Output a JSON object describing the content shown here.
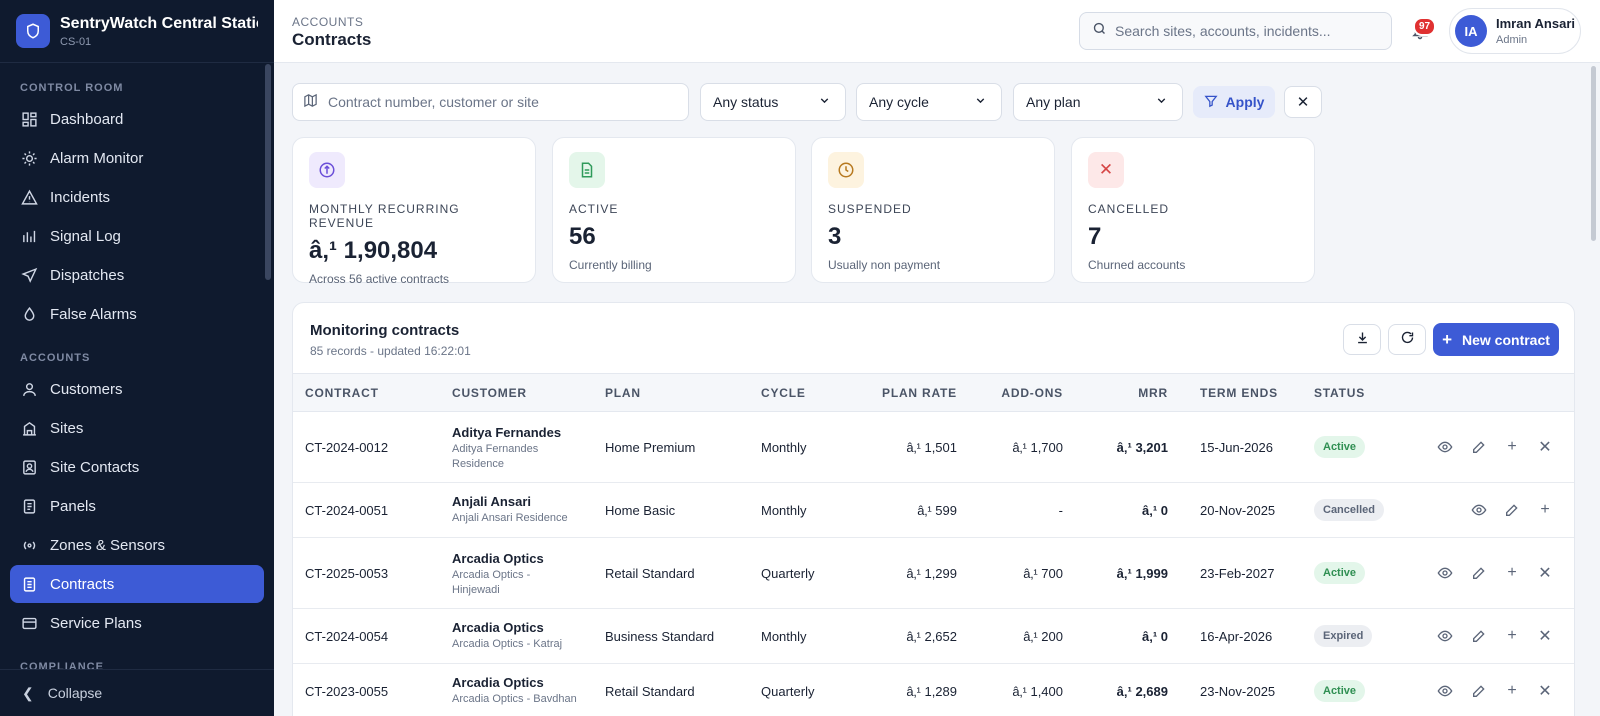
{
  "brand": {
    "title": "SentryWatch Central Station",
    "code": "CS-01"
  },
  "sidebar": {
    "sections": [
      {
        "label": "CONTROL ROOM",
        "items": [
          {
            "label": "Dashboard",
            "icon": "dashboard-icon"
          },
          {
            "label": "Alarm Monitor",
            "icon": "alarm-icon"
          },
          {
            "label": "Incidents",
            "icon": "warning-icon"
          },
          {
            "label": "Signal Log",
            "icon": "bar-chart-icon"
          },
          {
            "label": "Dispatches",
            "icon": "send-icon"
          },
          {
            "label": "False Alarms",
            "icon": "drop-icon"
          }
        ]
      },
      {
        "label": "ACCOUNTS",
        "items": [
          {
            "label": "Customers",
            "icon": "user-icon"
          },
          {
            "label": "Sites",
            "icon": "building-icon"
          },
          {
            "label": "Site Contacts",
            "icon": "contact-icon"
          },
          {
            "label": "Panels",
            "icon": "panel-icon"
          },
          {
            "label": "Zones & Sensors",
            "icon": "sensor-icon"
          },
          {
            "label": "Contracts",
            "icon": "document-icon",
            "active": true
          },
          {
            "label": "Service Plans",
            "icon": "card-icon"
          }
        ]
      },
      {
        "label": "COMPLIANCE",
        "items": []
      }
    ],
    "collapse_label": "Collapse"
  },
  "topbar": {
    "breadcrumb": "ACCOUNTS",
    "title": "Contracts",
    "search_placeholder": "Search sites, accounts, incidents...",
    "notif_count": "97",
    "user": {
      "initials": "IA",
      "name": "Imran Ansari",
      "role": "Admin"
    }
  },
  "filters": {
    "search_placeholder": "Contract number, customer or site",
    "status": "Any status",
    "cycle": "Any cycle",
    "plan": "Any plan",
    "apply_label": "Apply"
  },
  "kpis": [
    {
      "label": "MONTHLY RECURRING REVENUE",
      "value": "â‚¹ 1,90,804",
      "sub": "Across 56 active contracts",
      "icon": "currency-icon",
      "color": "#6b4fd8",
      "bg": "#efeafd"
    },
    {
      "label": "ACTIVE",
      "value": "56",
      "sub": "Currently billing",
      "icon": "file-icon",
      "color": "#2f9a5a",
      "bg": "#e4f6ea"
    },
    {
      "label": "SUSPENDED",
      "value": "3",
      "sub": "Usually non payment",
      "icon": "clock-icon",
      "color": "#b7791f",
      "bg": "#fdf3df"
    },
    {
      "label": "CANCELLED",
      "value": "7",
      "sub": "Churned accounts",
      "icon": "x-icon",
      "color": "#d64545",
      "bg": "#fde8e8"
    }
  ],
  "table": {
    "title": "Monitoring contracts",
    "subtitle": "85 records - updated 16:22:01",
    "new_label": "New contract",
    "columns": [
      "CONTRACT",
      "CUSTOMER",
      "PLAN",
      "CYCLE",
      "PLAN RATE",
      "ADD-ONS",
      "MRR",
      "TERM ENDS",
      "STATUS"
    ],
    "rows": [
      {
        "contract": "CT-2024-0012",
        "name": "Aditya Fernandes",
        "site": "Aditya Fernandes Residence",
        "plan": "Home Premium",
        "cycle": "Monthly",
        "rate": "â‚¹ 1,501",
        "addons": "â‚¹ 1,700",
        "mrr": "â‚¹ 3,201",
        "term": "15-Jun-2026",
        "status": "Active"
      },
      {
        "contract": "CT-2024-0051",
        "name": "Anjali Ansari",
        "site": "Anjali Ansari Residence",
        "plan": "Home Basic",
        "cycle": "Monthly",
        "rate": "â‚¹ 599",
        "addons": "-",
        "mrr": "â‚¹ 0",
        "term": "20-Nov-2025",
        "status": "Cancelled"
      },
      {
        "contract": "CT-2025-0053",
        "name": "Arcadia Optics",
        "site": "Arcadia Optics - Hinjewadi",
        "plan": "Retail Standard",
        "cycle": "Quarterly",
        "rate": "â‚¹ 1,299",
        "addons": "â‚¹ 700",
        "mrr": "â‚¹ 1,999",
        "term": "23-Feb-2027",
        "status": "Active"
      },
      {
        "contract": "CT-2024-0054",
        "name": "Arcadia Optics",
        "site": "Arcadia Optics - Katraj",
        "plan": "Business Standard",
        "cycle": "Monthly",
        "rate": "â‚¹ 2,652",
        "addons": "â‚¹ 200",
        "mrr": "â‚¹ 0",
        "term": "16-Apr-2026",
        "status": "Expired"
      },
      {
        "contract": "CT-2023-0055",
        "name": "Arcadia Optics",
        "site": "Arcadia Optics - Bavdhan",
        "plan": "Retail Standard",
        "cycle": "Quarterly",
        "rate": "â‚¹ 1,289",
        "addons": "â‚¹ 1,400",
        "mrr": "â‚¹ 2,689",
        "term": "23-Nov-2025",
        "status": "Active"
      }
    ]
  }
}
